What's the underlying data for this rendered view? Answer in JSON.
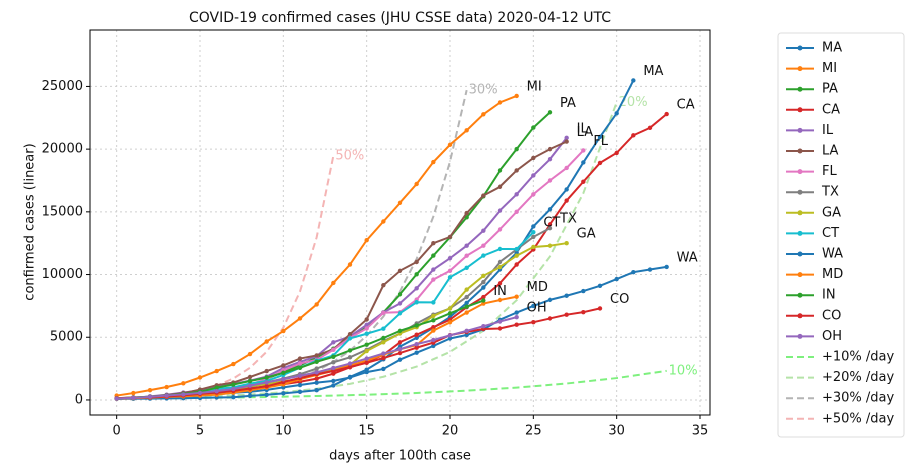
{
  "chart_data": {
    "type": "line",
    "title": "COVID-19 confirmed cases (JHU CSSE data) 2020-04-12 UTC",
    "xlabel": "days after 100th case",
    "ylabel": "confirmed cases (linear)",
    "xlim": [
      -1.6,
      35.6
    ],
    "ylim": [
      -1200,
      29500
    ],
    "xticks": [
      0,
      5,
      10,
      15,
      20,
      25,
      30,
      35
    ],
    "yticks": [
      0,
      5000,
      10000,
      15000,
      20000,
      25000
    ],
    "grid": true,
    "legend": "outside right",
    "series": [
      {
        "name": "MA",
        "color": "#1f77b4",
        "values": [
          95,
          100,
          108,
          123,
          138,
          164,
          197,
          218,
          328,
          413,
          525,
          646,
          777,
          1159,
          1838,
          2417,
          3240,
          4257,
          4955,
          5752,
          6620,
          7738,
          8966,
          10402,
          11736,
          13837,
          15202,
          16790,
          18941,
          20974,
          22860,
          25475
        ]
      },
      {
        "name": "MI",
        "color": "#ff7f0e",
        "values": [
          350,
          550,
          780,
          1030,
          1330,
          1790,
          2300,
          2860,
          3660,
          4660,
          5490,
          6500,
          7620,
          9330,
          10800,
          12740,
          14230,
          15720,
          17220,
          18970,
          20350,
          21500,
          22780,
          23720,
          24240
        ]
      },
      {
        "name": "PA",
        "color": "#2ca02c",
        "values": [
          120,
          150,
          190,
          270,
          370,
          480,
          650,
          850,
          1130,
          1690,
          2220,
          2750,
          3390,
          4090,
          4960,
          5800,
          6980,
          8420,
          10020,
          11510,
          12980,
          14560,
          16240,
          18300,
          20000,
          21720,
          22940
        ]
      },
      {
        "name": "CA",
        "color": "#d62728",
        "values": [
          130,
          180,
          220,
          300,
          350,
          430,
          520,
          700,
          900,
          1100,
          1250,
          1450,
          1700,
          2100,
          2600,
          3000,
          3600,
          4600,
          5200,
          5800,
          6400,
          7400,
          8200,
          9300,
          10800,
          12000,
          14000,
          15900,
          17400,
          18900,
          19700,
          21100,
          21700,
          22800
        ]
      },
      {
        "name": "IL",
        "color": "#9467bd",
        "values": [
          105,
          160,
          290,
          420,
          590,
          750,
          1050,
          1280,
          1540,
          1860,
          2540,
          3030,
          3490,
          4600,
          5060,
          5990,
          6980,
          7700,
          8900,
          10400,
          11300,
          12300,
          13500,
          15100,
          16400,
          17900,
          19200,
          20900
        ]
      },
      {
        "name": "LA",
        "color": "#8c564b",
        "values": [
          140,
          200,
          260,
          390,
          540,
          830,
          1170,
          1390,
          1830,
          2300,
          2750,
          3300,
          3550,
          4030,
          5240,
          6420,
          9150,
          10300,
          11000,
          12500,
          13000,
          14900,
          16300,
          17000,
          18300,
          19300,
          20000,
          20600
        ]
      },
      {
        "name": "FL",
        "color": "#e377c2",
        "values": [
          120,
          180,
          250,
          330,
          440,
          560,
          760,
          1000,
          1230,
          1680,
          2360,
          2900,
          3200,
          4000,
          4950,
          5700,
          6950,
          7000,
          8000,
          9600,
          10300,
          11500,
          12300,
          13600,
          15000,
          16400,
          17500,
          18500,
          19900
        ]
      },
      {
        "name": "TX",
        "color": "#7f7f7f",
        "values": [
          100,
          120,
          170,
          210,
          300,
          400,
          580,
          760,
          1000,
          1400,
          1700,
          2050,
          2500,
          3000,
          3400,
          4000,
          4700,
          5300,
          6100,
          6800,
          7300,
          8200,
          9400,
          11000,
          12000,
          13000,
          13700
        ]
      },
      {
        "name": "GA",
        "color": "#bcbd22",
        "values": [
          120,
          150,
          200,
          290,
          420,
          510,
          620,
          770,
          1100,
          1250,
          1500,
          1650,
          2200,
          2450,
          2800,
          3900,
          4600,
          5300,
          5800,
          6700,
          7300,
          8800,
          9900,
          10600,
          11500,
          12200,
          12300,
          12500
        ]
      },
      {
        "name": "CT",
        "color": "#17becf",
        "values": [
          100,
          160,
          190,
          330,
          420,
          620,
          880,
          1000,
          1300,
          1520,
          1990,
          2570,
          3130,
          3550,
          4910,
          5280,
          5680,
          6910,
          7790,
          7780,
          9780,
          10540,
          11510,
          12040,
          12030,
          13380
        ]
      },
      {
        "name": "WA",
        "color": "#1f77b4",
        "values": [
          100,
          120,
          160,
          210,
          270,
          340,
          440,
          570,
          650,
          800,
          1000,
          1190,
          1380,
          1520,
          1790,
          2220,
          2470,
          3210,
          3770,
          4310,
          4900,
          5180,
          5630,
          6390,
          6970,
          7500,
          7980,
          8310,
          8680,
          9100,
          9640,
          10190,
          10400,
          10610
        ]
      },
      {
        "name": "MD",
        "color": "#ff7f0e",
        "values": [
          105,
          150,
          190,
          250,
          290,
          350,
          420,
          580,
          770,
          990,
          1240,
          1660,
          1990,
          2330,
          2760,
          3130,
          3610,
          4040,
          4370,
          5530,
          6190,
          6970,
          7690,
          7970,
          8230
        ]
      },
      {
        "name": "IN",
        "color": "#2ca02c",
        "values": [
          125,
          200,
          260,
          360,
          480,
          650,
          980,
          1230,
          1510,
          1790,
          2160,
          2560,
          3040,
          3440,
          3950,
          4410,
          4940,
          5510,
          5940,
          6350,
          6910,
          7440,
          7930
        ]
      },
      {
        "name": "CO",
        "color": "#d62728",
        "values": [
          130,
          180,
          220,
          280,
          360,
          480,
          590,
          720,
          910,
          1090,
          1430,
          1740,
          2060,
          2310,
          2630,
          2960,
          3340,
          3740,
          4170,
          4570,
          5170,
          5430,
          5660,
          5700,
          6000,
          6200,
          6500,
          6800,
          7000,
          7300
        ]
      },
      {
        "name": "OH",
        "color": "#9467bd",
        "values": [
          110,
          170,
          250,
          350,
          440,
          560,
          700,
          870,
          1140,
          1400,
          1650,
          1930,
          2200,
          2550,
          2900,
          3300,
          3700,
          4050,
          4450,
          4780,
          5150,
          5510,
          5880,
          6250,
          6600
        ]
      }
    ],
    "reference_series": [
      {
        "name": "+10% /day",
        "end_label": "10%",
        "color": "#7ef07e",
        "x": [
          0,
          3,
          6,
          9,
          12,
          15,
          18,
          21,
          24,
          27,
          30,
          33
        ],
        "values": [
          100,
          133,
          177,
          236,
          314,
          418,
          556,
          740,
          985,
          1311,
          1745,
          2322
        ]
      },
      {
        "name": "+20% /day",
        "end_label": "20%",
        "color": "#b5e3a8",
        "x": [
          0,
          2,
          4,
          6,
          8,
          10,
          12,
          14,
          16,
          18,
          20,
          22,
          24,
          26,
          28,
          30
        ],
        "values": [
          100,
          144,
          207,
          299,
          430,
          619,
          892,
          1284,
          1849,
          2662,
          3834,
          5521,
          7950,
          11448,
          16484,
          23738
        ]
      },
      {
        "name": "+30% /day",
        "end_label": "30%",
        "color": "#b4b4b4",
        "x": [
          0,
          1,
          2,
          3,
          4,
          5,
          6,
          7,
          8,
          9,
          10,
          11,
          12,
          13,
          14,
          15,
          16,
          17,
          18,
          19,
          20,
          21
        ],
        "values": [
          100,
          130,
          169,
          220,
          286,
          371,
          483,
          627,
          816,
          1060,
          1379,
          1792,
          2330,
          3029,
          3937,
          5119,
          6654,
          8650,
          11246,
          14620,
          19005,
          24706
        ]
      },
      {
        "name": "+50% /day",
        "end_label": "50%",
        "color": "#f4b4b4",
        "x": [
          0,
          1,
          2,
          3,
          4,
          5,
          6,
          7,
          8,
          9,
          10,
          11,
          12,
          13
        ],
        "values": [
          100,
          150,
          225,
          338,
          506,
          759,
          1139,
          1709,
          2563,
          3844,
          5767,
          8650,
          12975,
          19462
        ]
      }
    ]
  }
}
